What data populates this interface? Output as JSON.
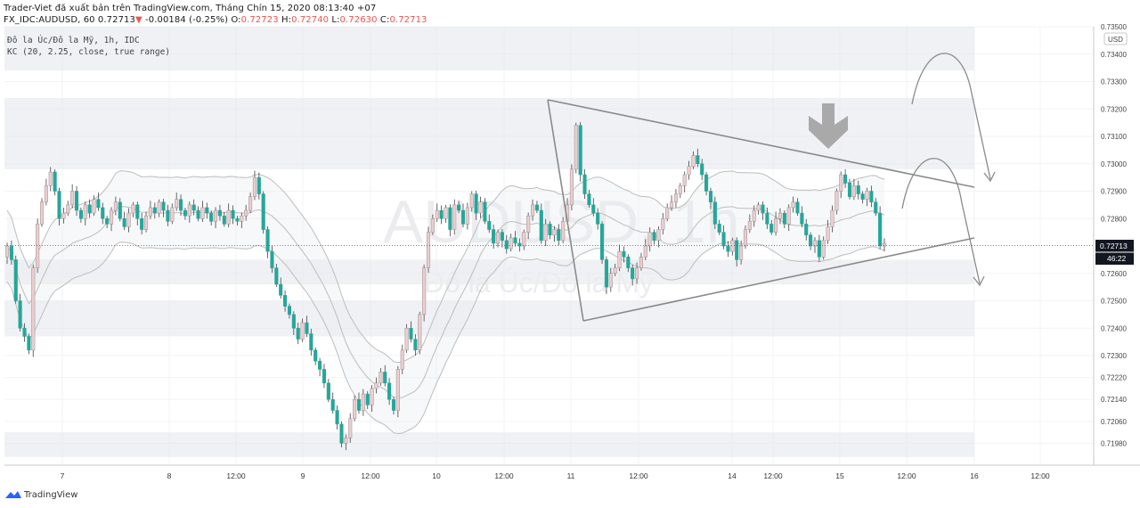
{
  "header": {
    "line1": "Trader-Viet đã xuất bản trên TradingView.com, Tháng Chín 15, 2020 08:13:40 +07",
    "symbol_line": "FX_IDC:AUDUSD, 60",
    "last_price": "0.72713",
    "change_arrow": "▼",
    "change": "-0.00184 (-0.25%)",
    "o_label": "O:",
    "o_value": "0.72723",
    "h_label": "H:",
    "h_value": "0.72740",
    "l_label": "L:",
    "l_value": "0.72630",
    "c_label": "C:",
    "c_value": "0.72713"
  },
  "legend": {
    "symbol_desc": "Đô la Úc/Đô la Mỹ, 1h, IDC",
    "indicator": "KC (20, 2.25, close, true range)"
  },
  "watermark": {
    "ticker": "AUDUSD, 1h",
    "name": "Đô la Úc/Đô la Mỹ"
  },
  "currency_badge": "USD",
  "price_tag": {
    "price": "0.72713",
    "countdown": "46:22"
  },
  "footer": {
    "brand": "TradingView"
  },
  "colors": {
    "up": "#eaced0",
    "down": "#26a69a",
    "zone": "#e3e5ec",
    "line": "#8a8a8a",
    "band": "#bdbdbd"
  },
  "chart_data": {
    "type": "candlestick",
    "title": "",
    "ylim": [
      0.719,
      0.735
    ],
    "y_ticks": [
      "0.73500",
      "0.73400",
      "0.73300",
      "0.73200",
      "0.73100",
      "0.73000",
      "0.72900",
      "0.72800",
      "0.72713",
      "0.72600",
      "0.72500",
      "0.72400",
      "0.72300",
      "0.72220",
      "0.72140",
      "0.72060",
      "0.71980"
    ],
    "x_ticks": [
      "7",
      "8",
      "12:00",
      "9",
      "12:00",
      "10",
      "12:00",
      "11",
      "12:00",
      "14",
      "12:00",
      "15",
      "12:00",
      "16",
      "12:00"
    ],
    "zones": [
      {
        "y1": 0.735,
        "y2": 0.7334
      },
      {
        "y1": 0.7324,
        "y2": 0.7298
      },
      {
        "y1": 0.7265,
        "y2": 0.7256
      },
      {
        "y1": 0.725,
        "y2": 0.7237
      },
      {
        "y1": 0.7202,
        "y2": 0.7193
      }
    ],
    "triangle": {
      "upper": [
        {
          "x": "2020-09-10 21:00",
          "y": 0.7325
        },
        {
          "x": "2020-09-16 00:00",
          "y": 0.7293
        }
      ],
      "lower": [
        {
          "x": "2020-09-11 00:00",
          "y": 0.7245
        },
        {
          "x": "2020-09-16 00:00",
          "y": 0.7274
        }
      ]
    },
    "last_price": 0.72713,
    "closes": [
      0.727,
      0.7265,
      0.725,
      0.724,
      0.7237,
      0.7232,
      0.7262,
      0.7278,
      0.7286,
      0.7292,
      0.7297,
      0.729,
      0.728,
      0.7282,
      0.7285,
      0.729,
      0.7283,
      0.728,
      0.7285,
      0.7282,
      0.7287,
      0.7284,
      0.728,
      0.7278,
      0.7283,
      0.7286,
      0.728,
      0.7277,
      0.7282,
      0.7285,
      0.728,
      0.7276,
      0.7281,
      0.7284,
      0.7282,
      0.7286,
      0.7283,
      0.7279,
      0.7284,
      0.7287,
      0.7283,
      0.7281,
      0.7285,
      0.7283,
      0.728,
      0.7284,
      0.7282,
      0.7279,
      0.7283,
      0.7281,
      0.7278,
      0.7283,
      0.728,
      0.7279,
      0.7281,
      0.7283,
      0.7288,
      0.7295,
      0.7289,
      0.7276,
      0.7268,
      0.7262,
      0.7256,
      0.7252,
      0.7248,
      0.7245,
      0.724,
      0.7236,
      0.7242,
      0.7238,
      0.7232,
      0.7228,
      0.7225,
      0.722,
      0.7214,
      0.721,
      0.7205,
      0.7198,
      0.72,
      0.7207,
      0.7214,
      0.721,
      0.7216,
      0.7212,
      0.7218,
      0.722,
      0.7224,
      0.722,
      0.7214,
      0.721,
      0.7225,
      0.7232,
      0.724,
      0.7236,
      0.7232,
      0.7245,
      0.7262,
      0.7275,
      0.728,
      0.7283,
      0.728,
      0.7284,
      0.7276,
      0.7285,
      0.7283,
      0.7278,
      0.7284,
      0.7289,
      0.7282,
      0.7286,
      0.7279,
      0.7276,
      0.7271,
      0.7275,
      0.7272,
      0.7269,
      0.7273,
      0.7271,
      0.727,
      0.7275,
      0.7281,
      0.7285,
      0.7283,
      0.7272,
      0.7278,
      0.7274,
      0.7276,
      0.7272,
      0.7279,
      0.7285,
      0.7298,
      0.7314,
      0.7296,
      0.7289,
      0.7285,
      0.7282,
      0.7278,
      0.7265,
      0.7255,
      0.726,
      0.7262,
      0.7268,
      0.7266,
      0.7262,
      0.7258,
      0.7262,
      0.7266,
      0.727,
      0.7275,
      0.7272,
      0.7276,
      0.728,
      0.7284,
      0.7286,
      0.7289,
      0.7292,
      0.7296,
      0.7299,
      0.7303,
      0.73,
      0.7296,
      0.729,
      0.7286,
      0.7278,
      0.7275,
      0.727,
      0.7268,
      0.7272,
      0.7265,
      0.727,
      0.7276,
      0.7279,
      0.7283,
      0.7285,
      0.7282,
      0.7278,
      0.7275,
      0.728,
      0.7282,
      0.7278,
      0.7284,
      0.7286,
      0.7282,
      0.7278,
      0.7274,
      0.727,
      0.7272,
      0.7266,
      0.7272,
      0.7277,
      0.7283,
      0.729,
      0.7296,
      0.7293,
      0.7288,
      0.7292,
      0.7289,
      0.7287,
      0.729,
      0.7286,
      0.7282,
      0.727,
      0.7271
    ]
  }
}
